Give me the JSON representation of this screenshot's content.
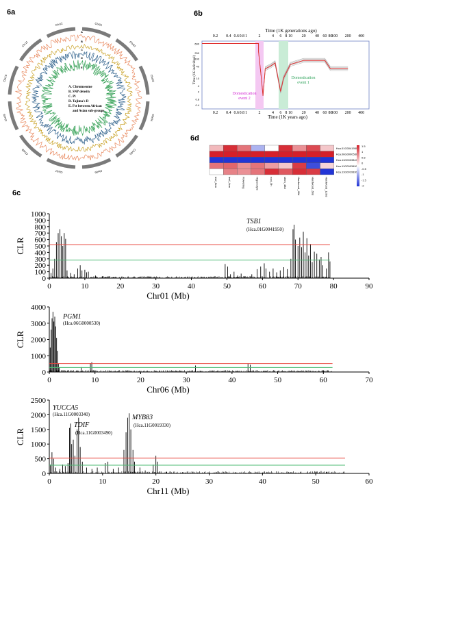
{
  "panel_labels": {
    "a": "6a",
    "b": "6b",
    "c": "6c",
    "d": "6d"
  },
  "colors": {
    "red_line": "#e8453c",
    "green_line": "#4cbb73",
    "clr_bar": "#000000",
    "circos_snp": "#e8885d",
    "circos_pi": "#c9a227",
    "circos_tajima": "#2c5f8a",
    "circos_fst": "#3aa35a",
    "psmc_main": "#e03030",
    "psmc_boot": "#b0b0b0",
    "dom1_band": "#c9ecd6",
    "dom2_band": "#f4c8f2",
    "heat_high": "#d4202a",
    "heat_low": "#2235d6",
    "heat_mid": "#ffffff"
  },
  "circos": {
    "track_letters": [
      "A",
      "B",
      "C",
      "D",
      "E"
    ],
    "legend_lines": [
      "A. Chromosome",
      "B. SNP density",
      "C. Pi",
      "D. Tajima's D",
      "E. Fst between African",
      "and Asian sub-groups"
    ],
    "chrom_labels": [
      "Chr01",
      "Chr02",
      "Chr03",
      "Chr04",
      "Chr05",
      "Chr06",
      "Chr07",
      "Chr08",
      "Chr09",
      "Chr10",
      "Chr11",
      "Chr12"
    ]
  },
  "psmc": {
    "top_axis_title": "Time (1K generations ago)",
    "bottom_axis_title": "Time (1K years ago)",
    "y_axis_title": "Time (1K individual)",
    "top_ticks": [
      "0.2",
      "0.4",
      "0.6",
      "0.8",
      "1",
      "2",
      "4",
      "6",
      "8",
      "10",
      "20",
      "40",
      "60",
      "80",
      "100",
      "200",
      "400"
    ],
    "bottom_ticks": [
      "0.2",
      "0.4",
      "0.6",
      "0.8",
      "1",
      "2",
      "4",
      "6",
      "8",
      "10",
      "20",
      "40",
      "60",
      "80",
      "100",
      "200",
      "400"
    ],
    "y_ticks": [
      "600",
      "200",
      "100",
      "40",
      "10",
      "4",
      "2",
      "0.8",
      "0.4"
    ],
    "events": [
      {
        "label_line1": "Domestication",
        "label_line2": "event 1"
      },
      {
        "label_line1": "Domestication",
        "label_line2": "event 2"
      }
    ]
  },
  "heatmap": {
    "rows": [
      "Hca.01G0041950",
      "Hca.06G0000530",
      "Hca.11G0003340",
      "Hca.11G0003490",
      "Hca.11G0019330"
    ],
    "cols": [
      "leaf_8cm",
      "leaf_4cm",
      "Flowering",
      "Hypocotyls",
      "root_0h",
      "stem_48d",
      "Hardwood_48d",
      "Hardwood_60d",
      "Hardwood_120d"
    ],
    "values": [
      [
        0.5,
        1.5,
        1.0,
        -0.6,
        0.0,
        1.5,
        0.8,
        1.3,
        0.4
      ],
      [
        1.6,
        1.6,
        1.6,
        1.6,
        1.6,
        1.6,
        1.6,
        1.6,
        1.6
      ],
      [
        -1.6,
        -1.6,
        -1.6,
        -1.6,
        -1.6,
        -1.6,
        -1.6,
        -1.6,
        -1.6
      ],
      [
        1.0,
        1.1,
        0.8,
        1.0,
        0.7,
        0.4,
        1.4,
        -1.4,
        0.3
      ],
      [
        0.0,
        0.9,
        0.8,
        1.0,
        1.5,
        1.2,
        1.5,
        1.4,
        -1.6
      ]
    ],
    "scale_ticks": [
      "1.5",
      "1",
      "0.5",
      "0",
      "-0.5",
      "-1",
      "-1.5",
      "-2"
    ]
  },
  "chart_data": [
    {
      "type": "bar",
      "chrom": "Chr01",
      "xlabel": "Chr01 (Mb)",
      "ylabel": "CLR",
      "xlim": [
        0,
        90
      ],
      "ylim": [
        0,
        1000
      ],
      "x_ticks": [
        0,
        10,
        20,
        30,
        40,
        50,
        60,
        70,
        80,
        90
      ],
      "y_ticks": [
        0,
        100,
        200,
        300,
        400,
        500,
        600,
        700,
        800,
        900,
        1000
      ],
      "thresholds": {
        "red": 520,
        "green": 280
      },
      "threshold_end": 79,
      "peaks": [
        [
          0.5,
          80
        ],
        [
          1.0,
          150
        ],
        [
          1.5,
          300
        ],
        [
          2.0,
          560
        ],
        [
          2.5,
          700
        ],
        [
          3.0,
          760
        ],
        [
          3.4,
          650
        ],
        [
          3.8,
          500
        ],
        [
          4.2,
          700
        ],
        [
          4.6,
          610
        ],
        [
          5.0,
          120
        ],
        [
          6,
          80
        ],
        [
          7,
          60
        ],
        [
          8,
          150
        ],
        [
          8.7,
          200
        ],
        [
          9.2,
          120
        ],
        [
          10,
          130
        ],
        [
          10.5,
          90
        ],
        [
          11,
          100
        ],
        [
          13,
          40
        ],
        [
          15,
          30
        ],
        [
          18,
          20
        ],
        [
          25,
          15
        ],
        [
          38,
          15
        ],
        [
          40,
          15
        ],
        [
          49.5,
          220
        ],
        [
          50.2,
          180
        ],
        [
          51,
          60
        ],
        [
          52,
          100
        ],
        [
          53,
          40
        ],
        [
          54,
          70
        ],
        [
          55,
          30
        ],
        [
          57,
          60
        ],
        [
          58.5,
          140
        ],
        [
          59.5,
          180
        ],
        [
          60.5,
          230
        ],
        [
          61,
          150
        ],
        [
          62,
          100
        ],
        [
          63,
          150
        ],
        [
          64,
          90
        ],
        [
          65,
          120
        ],
        [
          66,
          170
        ],
        [
          67,
          140
        ],
        [
          68,
          300
        ],
        [
          68.6,
          760
        ],
        [
          68.9,
          830
        ],
        [
          69.3,
          600
        ],
        [
          70,
          500
        ],
        [
          70.5,
          630
        ],
        [
          71,
          480
        ],
        [
          71.5,
          720
        ],
        [
          72,
          400
        ],
        [
          72.5,
          620
        ],
        [
          73,
          350
        ],
        [
          73.5,
          530
        ],
        [
          74,
          250
        ],
        [
          74.6,
          410
        ],
        [
          75.3,
          380
        ],
        [
          76,
          290
        ],
        [
          76.5,
          330
        ],
        [
          77,
          200
        ],
        [
          78,
          150
        ],
        [
          78.6,
          400
        ],
        [
          79,
          260
        ]
      ],
      "annotations": [
        {
          "gene": "TSB1",
          "id": "(Hca.01G0041950)",
          "x": 68.9,
          "y": 830
        }
      ]
    },
    {
      "type": "bar",
      "chrom": "Chr06",
      "xlabel": "Chr06 (Mb)",
      "ylabel": "CLR",
      "xlim": [
        0,
        70
      ],
      "ylim": [
        0,
        4000
      ],
      "x_ticks": [
        0,
        10,
        20,
        30,
        40,
        50,
        60,
        70
      ],
      "y_ticks": [
        0,
        1000,
        2000,
        3000,
        4000
      ],
      "thresholds": {
        "red": 520,
        "green": 280
      },
      "threshold_end": 62,
      "peaks": [
        [
          0.2,
          1500
        ],
        [
          0.4,
          2600
        ],
        [
          0.6,
          3300
        ],
        [
          0.8,
          3700
        ],
        [
          1.0,
          3100
        ],
        [
          1.2,
          3400
        ],
        [
          1.4,
          2800
        ],
        [
          1.6,
          2100
        ],
        [
          1.8,
          1300
        ],
        [
          2.0,
          500
        ],
        [
          2.2,
          300
        ],
        [
          3,
          120
        ],
        [
          4,
          80
        ],
        [
          5,
          60
        ],
        [
          6,
          100
        ],
        [
          7,
          300
        ],
        [
          8,
          90
        ],
        [
          9,
          550
        ],
        [
          9.3,
          600
        ],
        [
          10,
          60
        ],
        [
          12,
          40
        ],
        [
          15,
          30
        ],
        [
          20,
          20
        ],
        [
          25,
          30
        ],
        [
          30,
          20
        ],
        [
          32,
          400
        ],
        [
          33,
          80
        ],
        [
          38,
          60
        ],
        [
          43.5,
          500
        ],
        [
          44,
          450
        ],
        [
          47,
          60
        ],
        [
          50,
          40
        ],
        [
          55,
          50
        ],
        [
          60,
          80
        ],
        [
          61,
          120
        ]
      ],
      "annotations": [
        {
          "gene": "PGM1",
          "id": "(Hca.06G0000530)",
          "x": 0.8,
          "y": 3700
        }
      ]
    },
    {
      "type": "bar",
      "chrom": "Chr11",
      "xlabel": "Chr11 (Mb)",
      "ylabel": "CLR",
      "xlim": [
        0,
        60
      ],
      "ylim": [
        0,
        2500
      ],
      "x_ticks": [
        0,
        10,
        20,
        30,
        40,
        50,
        60
      ],
      "y_ticks": [
        0,
        500,
        1000,
        1500,
        2000,
        2500
      ],
      "thresholds": {
        "red": 520,
        "green": 280
      },
      "threshold_end": 55.5,
      "peaks": [
        [
          0.2,
          300
        ],
        [
          0.5,
          720
        ],
        [
          0.8,
          500
        ],
        [
          1.2,
          200
        ],
        [
          2,
          150
        ],
        [
          2.5,
          300
        ],
        [
          3,
          250
        ],
        [
          3.5,
          350
        ],
        [
          3.8,
          1550
        ],
        [
          4.0,
          1700
        ],
        [
          4.2,
          1000
        ],
        [
          4.5,
          1150
        ],
        [
          4.8,
          600
        ],
        [
          5.2,
          1500
        ],
        [
          5.5,
          1900
        ],
        [
          5.8,
          900
        ],
        [
          6.2,
          400
        ],
        [
          7,
          200
        ],
        [
          8,
          150
        ],
        [
          9,
          200
        ],
        [
          10.5,
          350
        ],
        [
          11,
          400
        ],
        [
          12,
          150
        ],
        [
          13,
          200
        ],
        [
          14,
          800
        ],
        [
          14.4,
          1400
        ],
        [
          14.7,
          1900
        ],
        [
          15.0,
          2050
        ],
        [
          15.3,
          1500
        ],
        [
          15.7,
          800
        ],
        [
          16,
          400
        ],
        [
          17,
          200
        ],
        [
          18,
          100
        ],
        [
          19.5,
          300
        ],
        [
          20,
          600
        ],
        [
          20.3,
          400
        ],
        [
          22,
          60
        ],
        [
          25,
          40
        ],
        [
          30,
          30
        ],
        [
          35,
          30
        ],
        [
          40,
          30
        ],
        [
          45,
          30
        ],
        [
          50,
          60
        ],
        [
          51,
          80
        ],
        [
          52,
          50
        ]
      ],
      "annotations": [
        {
          "gene": "YUCCA5",
          "id": "(Hca.11G0003340)",
          "x": 3.9,
          "y": 1700
        },
        {
          "gene": "TDIF",
          "id": "(Hca.11G0003490)",
          "x": 5.5,
          "y": 1900
        },
        {
          "gene": "MYB83",
          "id": "(Hca.11G0019330)",
          "x": 15.0,
          "y": 2050
        }
      ]
    }
  ]
}
